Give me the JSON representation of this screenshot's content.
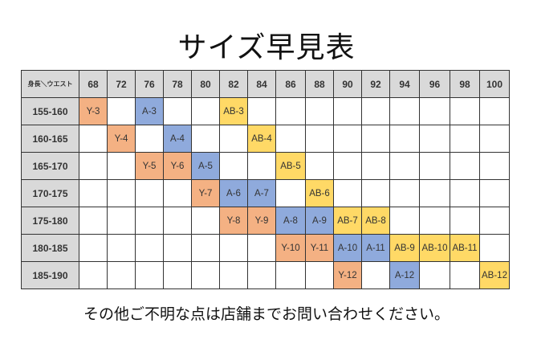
{
  "title": "サイズ早見表",
  "corner_label": "身長＼ウエスト",
  "waists": [
    "68",
    "72",
    "76",
    "78",
    "80",
    "82",
    "84",
    "86",
    "88",
    "90",
    "92",
    "94",
    "96",
    "98",
    "100"
  ],
  "rows": [
    {
      "height": "155-160",
      "cells": [
        "Y-3",
        "",
        "A-3",
        "",
        "",
        "AB-3",
        "",
        "",
        "",
        "",
        "",
        "",
        "",
        "",
        ""
      ]
    },
    {
      "height": "160-165",
      "cells": [
        "",
        "Y-4",
        "",
        "A-4",
        "",
        "",
        "AB-4",
        "",
        "",
        "",
        "",
        "",
        "",
        "",
        ""
      ]
    },
    {
      "height": "165-170",
      "cells": [
        "",
        "",
        "Y-5",
        "Y-6",
        "A-5",
        "",
        "",
        "AB-5",
        "",
        "",
        "",
        "",
        "",
        "",
        ""
      ]
    },
    {
      "height": "170-175",
      "cells": [
        "",
        "",
        "",
        "",
        "Y-7",
        "A-6",
        "A-7",
        "",
        "AB-6",
        "",
        "",
        "",
        "",
        "",
        ""
      ]
    },
    {
      "height": "175-180",
      "cells": [
        "",
        "",
        "",
        "",
        "",
        "Y-8",
        "Y-9",
        "A-8",
        "A-9",
        "AB-7",
        "AB-8",
        "",
        "",
        "",
        ""
      ]
    },
    {
      "height": "180-185",
      "cells": [
        "",
        "",
        "",
        "",
        "",
        "",
        "",
        "Y-10",
        "Y-11",
        "A-10",
        "A-11",
        "AB-9",
        "AB-10",
        "AB-11",
        ""
      ]
    },
    {
      "height": "185-190",
      "cells": [
        "",
        "",
        "",
        "",
        "",
        "",
        "",
        "",
        "",
        "Y-12",
        "",
        "A-12",
        "",
        "",
        "AB-12"
      ]
    }
  ],
  "colors": {
    "Y": "#f4b183",
    "A": "#8faadc",
    "AB": "#ffd966",
    "header": "#d9d9d9"
  },
  "footer": "その他ご不明な点は店舗までお問い合わせください。"
}
